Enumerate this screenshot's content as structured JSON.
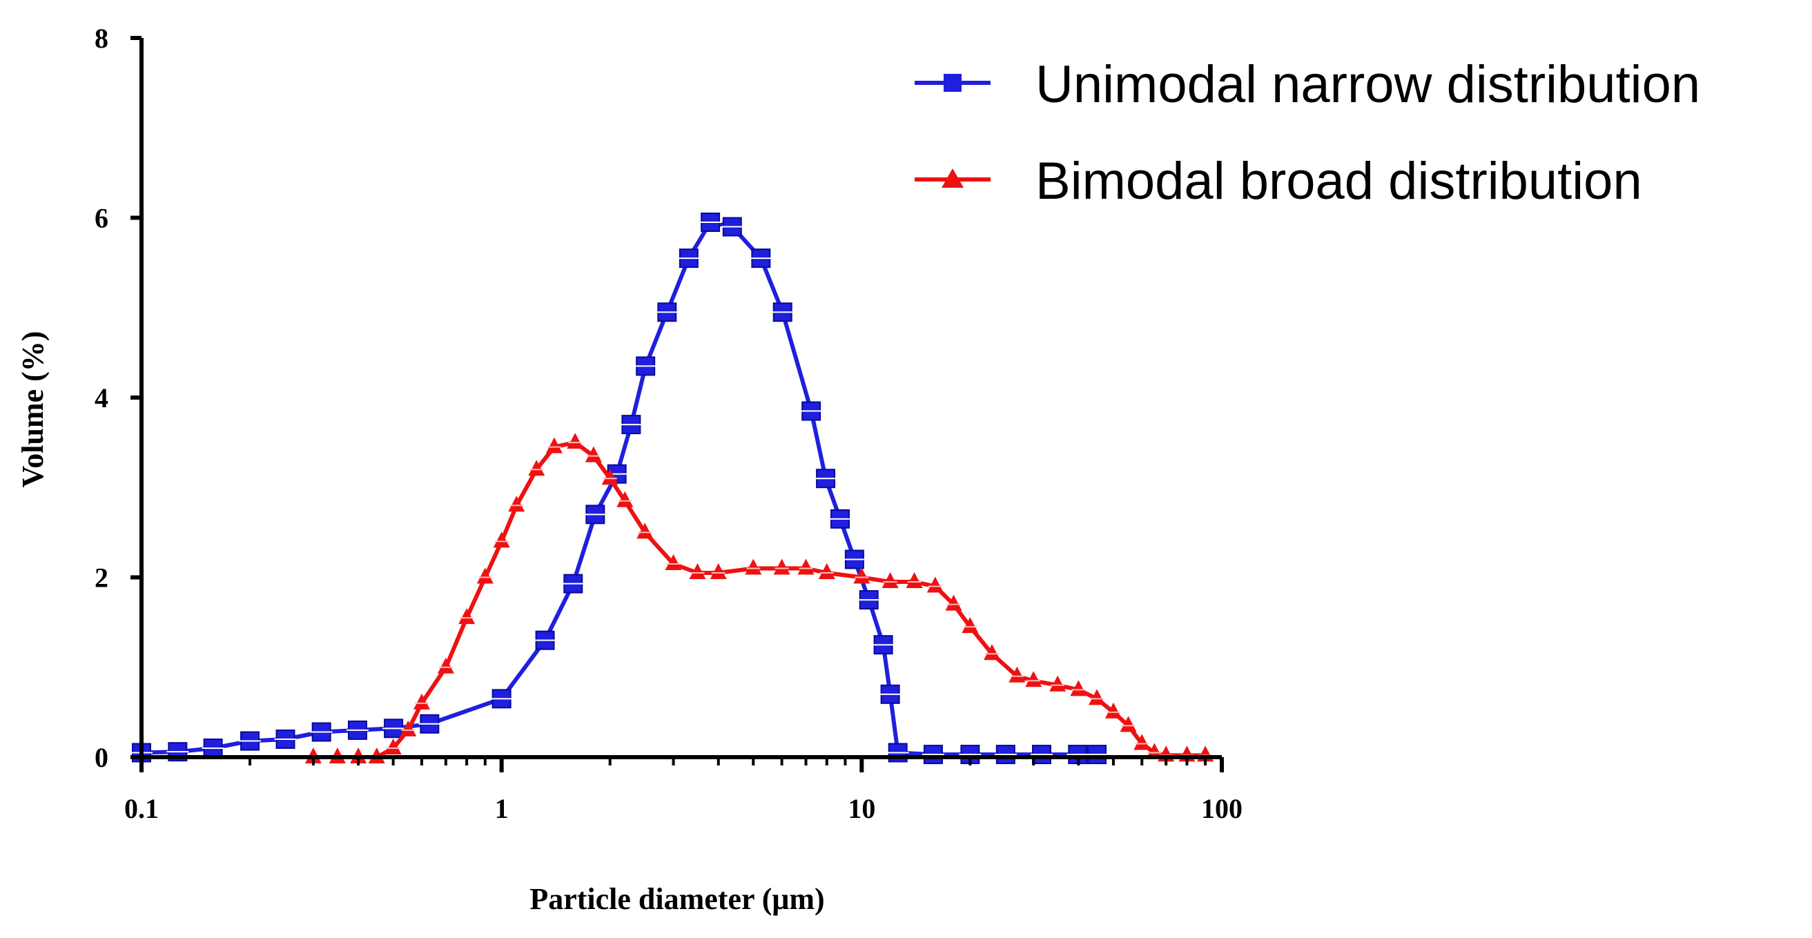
{
  "chart_data": {
    "type": "line",
    "title": "",
    "xlabel": "Particle diameter (μm)",
    "ylabel": "Volume (%)",
    "xscale": "log",
    "xlim": [
      0.1,
      100
    ],
    "ylim": [
      0,
      8
    ],
    "xticks": [
      0.1,
      1,
      10,
      100
    ],
    "xtick_labels": [
      "0.1",
      "1",
      "10",
      "100"
    ],
    "yticks": [
      0,
      2,
      4,
      6,
      8
    ],
    "ytick_labels": [
      "0",
      "2",
      "4",
      "6",
      "8"
    ],
    "legend_position": "top-right",
    "grid": false,
    "series": [
      {
        "name": "Unimodal narrow distribution",
        "color": "#1f1fdd",
        "marker": "square",
        "x": [
          0.1,
          0.126,
          0.158,
          0.2,
          0.251,
          0.316,
          0.398,
          0.501,
          0.631,
          1.0,
          1.32,
          1.58,
          1.82,
          2.09,
          2.29,
          2.51,
          2.88,
          3.31,
          3.8,
          4.37,
          5.25,
          6.03,
          7.24,
          7.94,
          8.71,
          9.55,
          10.47,
          11.48,
          12.0,
          12.6,
          15.8,
          20.0,
          25.1,
          31.6,
          39.8,
          45.0
        ],
        "y": [
          0.05,
          0.06,
          0.1,
          0.18,
          0.2,
          0.28,
          0.3,
          0.32,
          0.37,
          0.65,
          1.3,
          1.93,
          2.7,
          3.15,
          3.7,
          4.35,
          4.95,
          5.55,
          5.95,
          5.9,
          5.55,
          4.95,
          3.85,
          3.1,
          2.65,
          2.2,
          1.75,
          1.25,
          0.7,
          0.05,
          0.03,
          0.03,
          0.03,
          0.03,
          0.03,
          0.03
        ]
      },
      {
        "name": "Bimodal broad distribution",
        "color": "#ee1111",
        "marker": "triangle",
        "x": [
          0.3,
          0.35,
          0.4,
          0.45,
          0.5,
          0.55,
          0.6,
          0.7,
          0.8,
          0.9,
          1.0,
          1.1,
          1.25,
          1.4,
          1.6,
          1.8,
          2.0,
          2.2,
          2.5,
          3.0,
          3.5,
          4.0,
          5.0,
          6.0,
          7.0,
          8.0,
          10.0,
          12.0,
          14.0,
          16.0,
          18.0,
          20.0,
          23.0,
          27.0,
          30.0,
          35.0,
          40.0,
          45.0,
          50.0,
          55.0,
          60.0,
          65.0,
          70.0,
          80.0,
          90.0
        ],
        "y": [
          0.0,
          0.0,
          0.0,
          0.0,
          0.1,
          0.3,
          0.6,
          1.0,
          1.55,
          2.0,
          2.4,
          2.8,
          3.2,
          3.45,
          3.5,
          3.35,
          3.1,
          2.85,
          2.5,
          2.15,
          2.05,
          2.05,
          2.1,
          2.1,
          2.1,
          2.05,
          2.0,
          1.95,
          1.95,
          1.9,
          1.7,
          1.45,
          1.15,
          0.9,
          0.85,
          0.8,
          0.75,
          0.65,
          0.5,
          0.35,
          0.15,
          0.05,
          0.02,
          0.02,
          0.02
        ]
      }
    ]
  }
}
